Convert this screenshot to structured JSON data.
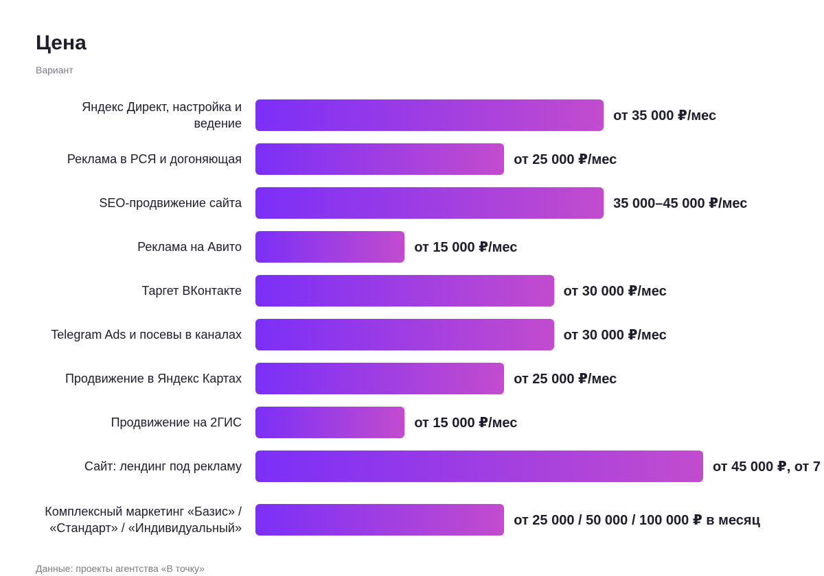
{
  "chart_data": {
    "type": "bar",
    "orientation": "horizontal",
    "title": "Цена",
    "y_label": "Вариант",
    "categories": [
      "Яндекс Директ, настройка и ведение",
      "Реклама в РСЯ и догоняющая",
      "SEO-продвижение сайта",
      "Реклама на Авито",
      "Таргет ВКонтакте",
      "Telegram Ads и посевы в каналах",
      "Продвижение в Яндекс Картах",
      "Продвижение на 2ГИС",
      "Сайт: лендинг под рекламу",
      "Комплексный маркетинг «Базис» / «Стандарт» / «Индивидуальный»"
    ],
    "values": [
      35000,
      25000,
      35000,
      15000,
      30000,
      30000,
      25000,
      15000,
      45000,
      25000
    ],
    "value_labels": [
      "от 35 000 ₽/мес",
      "от 25 000 ₽/мес",
      "35 000–45 000 ₽/мес",
      "от 15 000 ₽/мес",
      "от 30 000 ₽/мес",
      "от 30 000 ₽/мес",
      "от 25 000 ₽/мес",
      "от 15 000 ₽/мес",
      "от 45 000 ₽, от 7",
      "от 25 000 / 50 000 / 100 000 ₽ в месяц"
    ],
    "colors": [
      "#7b2ff7",
      "#c24cce"
    ],
    "source": "Данные: проекты агентства «В точку»"
  }
}
